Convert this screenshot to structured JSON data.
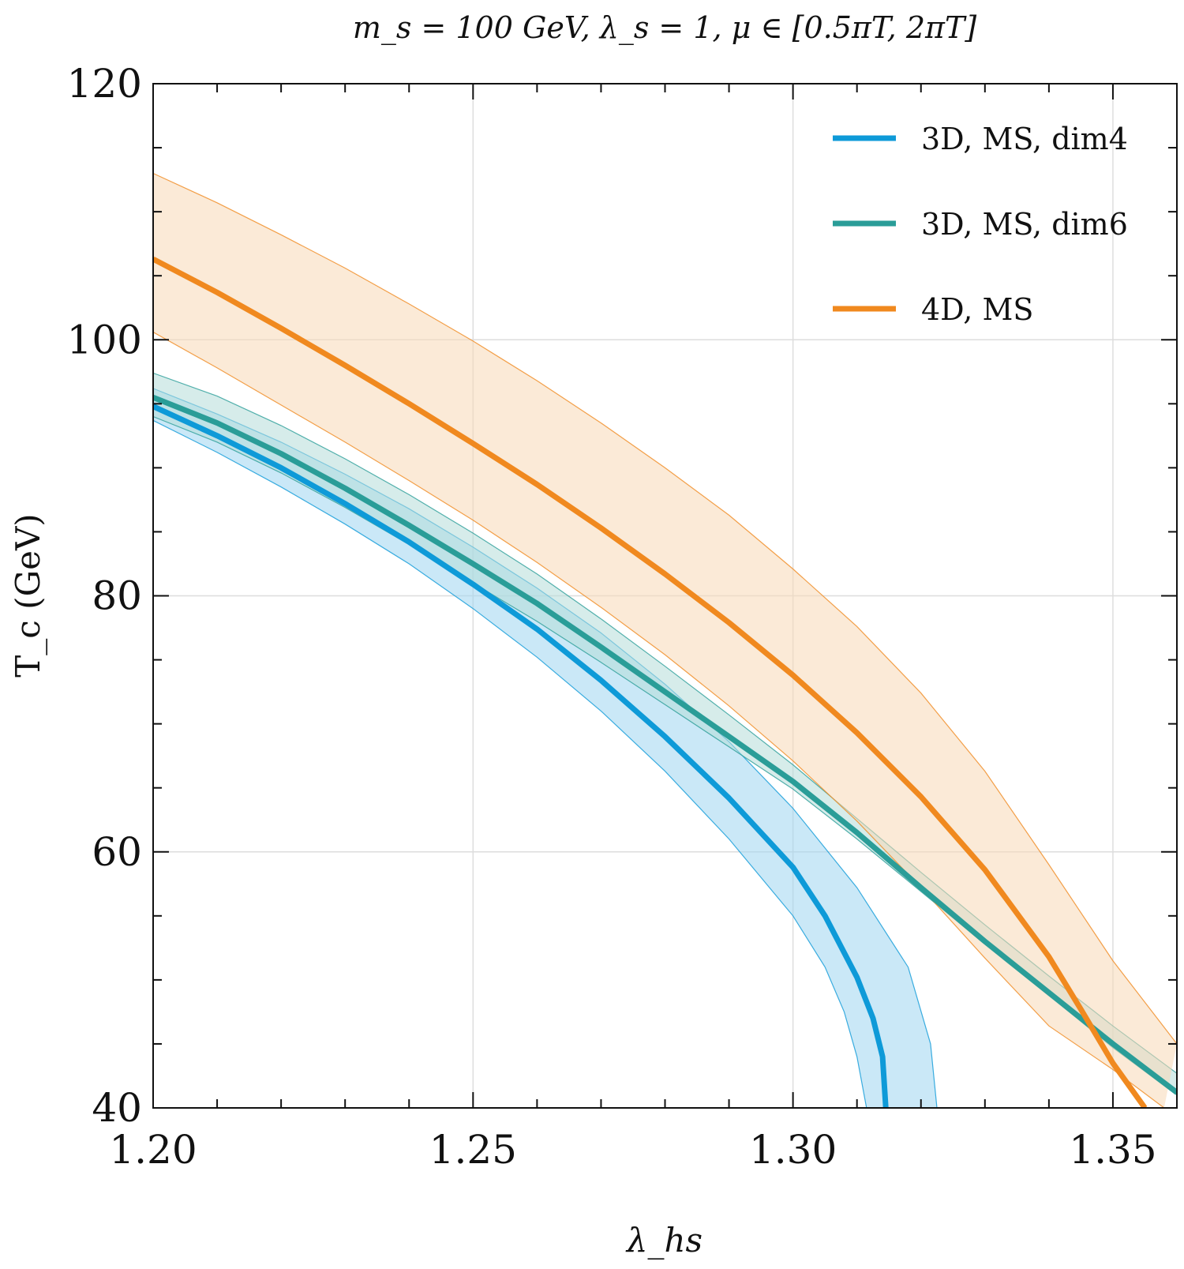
{
  "chart_data": {
    "type": "line",
    "title": "m_s = 100 GeV, λ_s = 1, μ ∈ [0.5πT, 2πT]",
    "xlabel": "λ_hs",
    "ylabel": "T_c (GeV)",
    "xlim": [
      1.2,
      1.36
    ],
    "ylim": [
      40,
      120
    ],
    "grid": true,
    "legend_position": "top-right",
    "x_ticks": [
      1.2,
      1.25,
      1.3,
      1.35
    ],
    "x_tick_labels": [
      "1.20",
      "1.25",
      "1.30",
      "1.35"
    ],
    "y_ticks": [
      40,
      60,
      80,
      100,
      120
    ],
    "y_tick_labels": [
      "40",
      "60",
      "80",
      "100",
      "120"
    ],
    "series": [
      {
        "name": "3D, MS, dim4",
        "legend_label": "3D, MS, dim4",
        "color": "#0e9ad8",
        "fill_color": "#9fd6f0",
        "x": [
          1.2,
          1.21,
          1.22,
          1.23,
          1.24,
          1.25,
          1.26,
          1.27,
          1.28,
          1.29,
          1.3,
          1.305,
          1.31,
          1.3125,
          1.314,
          1.3145
        ],
        "y": [
          94.8,
          92.5,
          90.0,
          87.2,
          84.2,
          80.9,
          77.4,
          73.4,
          69.0,
          64.2,
          58.8,
          55.0,
          50.2,
          47.0,
          44.0,
          40.0
        ],
        "band_lower_x": [
          1.2,
          1.21,
          1.22,
          1.23,
          1.24,
          1.25,
          1.26,
          1.27,
          1.28,
          1.29,
          1.3,
          1.305,
          1.308,
          1.31,
          1.3115
        ],
        "band_lower_y": [
          93.7,
          91.2,
          88.5,
          85.6,
          82.5,
          79.0,
          75.2,
          71.0,
          66.3,
          61.0,
          55.0,
          51.0,
          47.5,
          44.0,
          40.0
        ],
        "band_upper_x": [
          1.2,
          1.21,
          1.22,
          1.23,
          1.24,
          1.25,
          1.26,
          1.27,
          1.28,
          1.29,
          1.3,
          1.31,
          1.318,
          1.3215,
          1.3225
        ],
        "band_upper_y": [
          96.2,
          94.2,
          92.0,
          89.5,
          86.8,
          83.8,
          80.6,
          77.1,
          73.1,
          68.6,
          63.4,
          57.2,
          51.0,
          45.0,
          40.0
        ]
      },
      {
        "name": "3D, MS, dim6",
        "legend_label": "3D, MS, dim6",
        "color": "#2a9d98",
        "fill_color": "#b4dcd8",
        "x": [
          1.2,
          1.21,
          1.22,
          1.23,
          1.24,
          1.25,
          1.26,
          1.27,
          1.28,
          1.29,
          1.3,
          1.31,
          1.32,
          1.33,
          1.34,
          1.35,
          1.36
        ],
        "y": [
          95.5,
          93.5,
          91.1,
          88.4,
          85.5,
          82.5,
          79.4,
          76.0,
          72.5,
          69.0,
          65.5,
          61.5,
          57.2,
          53.0,
          49.0,
          45.0,
          41.2
        ],
        "band_lower_x": [
          1.2,
          1.21,
          1.22,
          1.23,
          1.24,
          1.25,
          1.26,
          1.27,
          1.28,
          1.29,
          1.3,
          1.31,
          1.32,
          1.33,
          1.34,
          1.35,
          1.36
        ],
        "band_lower_y": [
          94.0,
          92.0,
          89.6,
          86.9,
          84.0,
          81.0,
          78.0,
          74.8,
          71.5,
          68.2,
          64.9,
          61.0,
          56.9,
          52.8,
          48.8,
          44.7,
          41.0
        ],
        "band_upper_x": [
          1.2,
          1.21,
          1.22,
          1.23,
          1.24,
          1.25,
          1.26,
          1.27,
          1.28,
          1.29,
          1.3,
          1.31,
          1.32,
          1.33,
          1.34,
          1.35,
          1.36
        ],
        "band_upper_y": [
          97.4,
          95.6,
          93.3,
          90.7,
          87.9,
          84.9,
          81.7,
          78.2,
          74.5,
          70.7,
          66.8,
          62.6,
          58.4,
          54.3,
          50.3,
          46.4,
          42.7
        ]
      },
      {
        "name": "4D, MS",
        "legend_label": "4D, MS",
        "color": "#f0891f",
        "fill_color": "#f8d9b6",
        "x": [
          1.2,
          1.21,
          1.22,
          1.23,
          1.24,
          1.25,
          1.26,
          1.27,
          1.28,
          1.29,
          1.3,
          1.31,
          1.32,
          1.33,
          1.34,
          1.345,
          1.35,
          1.355
        ],
        "y": [
          106.3,
          103.7,
          100.9,
          98.0,
          95.0,
          91.9,
          88.7,
          85.3,
          81.7,
          77.9,
          73.8,
          69.3,
          64.3,
          58.6,
          51.8,
          47.7,
          43.5,
          40.0
        ],
        "band_lower_x": [
          1.2,
          1.21,
          1.22,
          1.23,
          1.24,
          1.25,
          1.26,
          1.27,
          1.28,
          1.29,
          1.3,
          1.31,
          1.32,
          1.33,
          1.34,
          1.35,
          1.358
        ],
        "band_lower_y": [
          100.6,
          97.8,
          94.9,
          92.0,
          89.0,
          85.9,
          82.6,
          79.1,
          75.4,
          71.4,
          67.1,
          62.4,
          57.2,
          51.7,
          46.4,
          43.0,
          40.0
        ],
        "band_upper_x": [
          1.2,
          1.21,
          1.22,
          1.23,
          1.24,
          1.25,
          1.26,
          1.27,
          1.28,
          1.29,
          1.3,
          1.31,
          1.32,
          1.33,
          1.34,
          1.35,
          1.36
        ],
        "band_upper_y": [
          113.0,
          110.7,
          108.2,
          105.6,
          102.8,
          99.9,
          96.8,
          93.5,
          90.0,
          86.3,
          82.1,
          77.6,
          72.4,
          66.3,
          59.0,
          51.5,
          45.0
        ]
      }
    ]
  }
}
